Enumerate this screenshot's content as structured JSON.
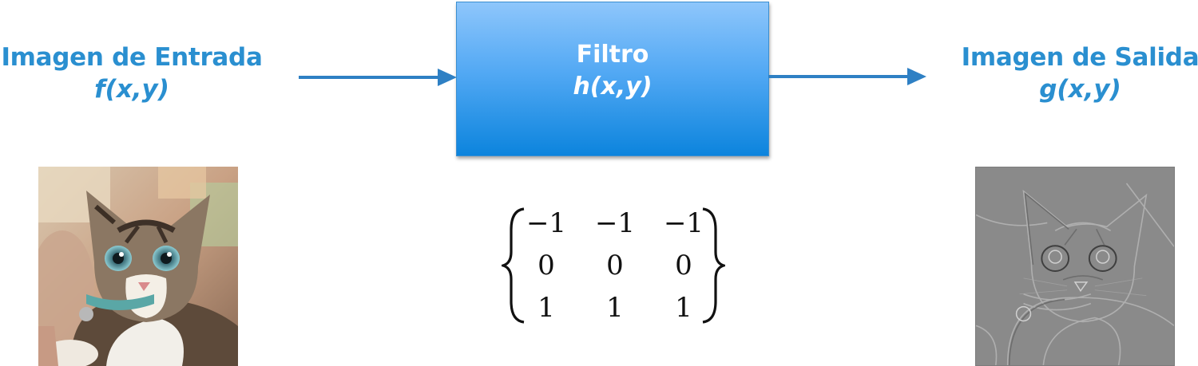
{
  "input": {
    "title": "Imagen de Entrada",
    "function": "f(x,y)"
  },
  "filter": {
    "title": "Filtro",
    "function": "h(x,y)"
  },
  "output": {
    "title": "Imagen de Salida",
    "function": "g(x,y)"
  },
  "kernel": {
    "rows": [
      [
        "−1",
        "−1",
        "−1"
      ],
      [
        "0",
        "0",
        "0"
      ],
      [
        "1",
        "1",
        "1"
      ]
    ]
  },
  "colors": {
    "label_blue": "#2a8fd0",
    "arrow_blue": "#2e80c4",
    "box_top": "#8ec6fb",
    "box_bottom": "#0c84dd"
  },
  "icons": {
    "input_image": "cat-photo-icon",
    "output_image": "cat-edge-filtered-icon"
  }
}
